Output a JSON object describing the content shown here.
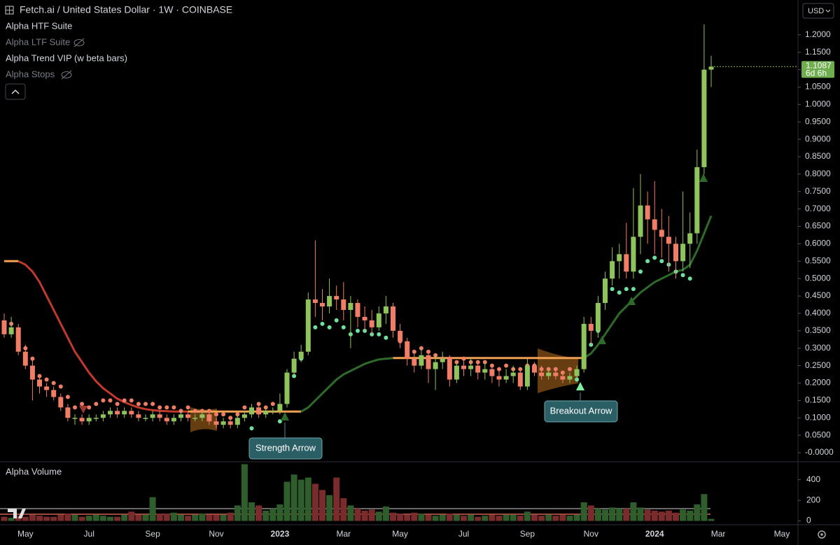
{
  "chart_data": {
    "type": "candlestick",
    "title": "Fetch.ai / United States Dollar · 1W · COINBASE",
    "indicators": [
      "Alpha HTF Suite",
      "Alpha LTF Suite",
      "Alpha Trend VIP (w beta bars)",
      "Alpha Stops"
    ],
    "currency": "USD",
    "countdown": "6d 6h",
    "annotations": [
      "Strength Arrow",
      "Breakout Arrow"
    ],
    "up_color": "#8fc45c",
    "down_color": "#f07d66",
    "categories": [
      null,
      null,
      null,
      "May",
      null,
      null,
      null,
      null,
      null,
      null,
      null,
      null,
      "Jul",
      null,
      null,
      null,
      null,
      null,
      null,
      null,
      null,
      "Sep",
      null,
      null,
      null,
      null,
      null,
      null,
      null,
      null,
      "Nov",
      null,
      null,
      null,
      null,
      null,
      null,
      null,
      null,
      "2023",
      null,
      null,
      null,
      null,
      null,
      null,
      null,
      null,
      "Mar",
      null,
      null,
      null,
      null,
      null,
      null,
      null,
      "May",
      null,
      null,
      null,
      null,
      null,
      null,
      null,
      null,
      "Jul",
      null,
      null,
      null,
      null,
      null,
      null,
      null,
      null,
      "Sep",
      null,
      null,
      null,
      null,
      null,
      null,
      null,
      null,
      "Nov",
      null,
      null,
      null,
      null,
      null,
      null,
      null,
      null,
      "2024",
      null,
      null,
      null,
      null,
      null,
      null,
      null,
      null,
      "Mar",
      null,
      null,
      null,
      null,
      null,
      null,
      null,
      null,
      "May",
      null
    ],
    "open": [
      0.38,
      0.34,
      0.36,
      0.29,
      0.25,
      0.21,
      0.19,
      0.18,
      0.16,
      0.13,
      0.1,
      0.1,
      0.09,
      0.1,
      0.1,
      0.11,
      0.12,
      0.11,
      0.12,
      0.11,
      0.1,
      0.1,
      0.11,
      0.1,
      0.09,
      0.1,
      0.11,
      0.1,
      0.1,
      0.11,
      0.09,
      0.08,
      0.09,
      0.08,
      0.1,
      0.11,
      0.13,
      0.11,
      0.12,
      0.12,
      0.14,
      0.23,
      0.27,
      0.29,
      0.44,
      0.43,
      0.42,
      0.45,
      0.44,
      0.41,
      0.43,
      0.39,
      0.38,
      0.36,
      0.4,
      0.42,
      0.35,
      0.32,
      0.27,
      0.25,
      0.28,
      0.24,
      0.26,
      0.27,
      0.21,
      0.25,
      0.24,
      0.25,
      0.23,
      0.24,
      0.22,
      0.21,
      0.22,
      0.23,
      0.19,
      0.25,
      0.23,
      0.22,
      0.23,
      0.22,
      0.21,
      0.22,
      0.24,
      0.37,
      0.35,
      0.43,
      0.5,
      0.55,
      0.57,
      0.52,
      0.62,
      0.71,
      0.67,
      0.64,
      0.62,
      0.6,
      0.55,
      0.6,
      0.63,
      0.82,
      1.1,
      null,
      null,
      null,
      null,
      null,
      null,
      null,
      null,
      null,
      null,
      null
    ],
    "high": [
      0.4,
      0.39,
      0.37,
      0.31,
      0.27,
      0.22,
      0.2,
      0.19,
      0.17,
      0.14,
      0.11,
      0.11,
      0.11,
      0.11,
      0.12,
      0.13,
      0.13,
      0.13,
      0.13,
      0.12,
      0.11,
      0.12,
      0.12,
      0.11,
      0.11,
      0.12,
      0.12,
      0.11,
      0.12,
      0.12,
      0.1,
      0.1,
      0.1,
      0.11,
      0.12,
      0.14,
      0.14,
      0.13,
      0.13,
      0.17,
      0.24,
      0.29,
      0.31,
      0.46,
      0.61,
      0.47,
      0.5,
      0.48,
      0.49,
      0.45,
      0.44,
      0.42,
      0.41,
      0.42,
      0.45,
      0.43,
      0.37,
      0.33,
      0.29,
      0.3,
      0.29,
      0.28,
      0.29,
      0.28,
      0.26,
      0.27,
      0.27,
      0.26,
      0.26,
      0.25,
      0.24,
      0.24,
      0.25,
      0.24,
      0.27,
      0.26,
      0.25,
      0.24,
      0.24,
      0.23,
      0.23,
      0.25,
      0.39,
      0.39,
      0.45,
      0.52,
      0.59,
      0.6,
      0.66,
      0.76,
      0.8,
      0.75,
      0.78,
      0.7,
      0.68,
      0.62,
      0.75,
      0.69,
      0.87,
      1.23,
      1.14,
      null,
      null,
      null,
      null,
      null,
      null,
      null,
      null,
      null,
      null,
      null
    ],
    "low": [
      0.33,
      0.33,
      0.28,
      0.24,
      0.15,
      0.17,
      0.16,
      0.15,
      0.12,
      0.09,
      0.08,
      0.08,
      0.08,
      0.09,
      0.09,
      0.1,
      0.1,
      0.1,
      0.1,
      0.09,
      0.09,
      0.09,
      0.09,
      0.08,
      0.08,
      0.09,
      0.09,
      0.09,
      0.09,
      0.08,
      0.07,
      0.07,
      0.07,
      0.07,
      0.09,
      0.1,
      0.1,
      0.1,
      0.11,
      0.11,
      0.13,
      0.22,
      0.26,
      0.28,
      0.39,
      0.38,
      0.4,
      0.41,
      0.38,
      0.3,
      0.36,
      0.35,
      0.34,
      0.35,
      0.37,
      0.33,
      0.3,
      0.25,
      0.23,
      0.24,
      0.2,
      0.18,
      0.24,
      0.19,
      0.2,
      0.22,
      0.22,
      0.21,
      0.21,
      0.2,
      0.19,
      0.2,
      0.2,
      0.18,
      0.18,
      0.22,
      0.21,
      0.21,
      0.21,
      0.2,
      0.2,
      0.21,
      0.23,
      0.31,
      0.33,
      0.41,
      0.48,
      0.5,
      0.5,
      0.5,
      0.57,
      0.6,
      0.57,
      0.56,
      0.52,
      0.5,
      0.52,
      0.53,
      0.6,
      0.8,
      1.05,
      null,
      null,
      null,
      null,
      null,
      null,
      null,
      null,
      null,
      null,
      null
    ],
    "close": [
      0.34,
      0.36,
      0.29,
      0.25,
      0.21,
      0.19,
      0.18,
      0.16,
      0.13,
      0.1,
      0.1,
      0.09,
      0.1,
      0.1,
      0.11,
      0.12,
      0.11,
      0.12,
      0.11,
      0.1,
      0.1,
      0.11,
      0.1,
      0.09,
      0.1,
      0.11,
      0.1,
      0.1,
      0.11,
      0.09,
      0.08,
      0.09,
      0.08,
      0.1,
      0.11,
      0.13,
      0.11,
      0.12,
      0.12,
      0.14,
      0.23,
      0.27,
      0.29,
      0.44,
      0.43,
      0.42,
      0.45,
      0.44,
      0.41,
      0.43,
      0.39,
      0.38,
      0.36,
      0.4,
      0.42,
      0.35,
      0.32,
      0.27,
      0.25,
      0.28,
      0.24,
      0.26,
      0.27,
      0.21,
      0.25,
      0.24,
      0.25,
      0.23,
      0.24,
      0.22,
      0.21,
      0.22,
      0.23,
      0.19,
      0.25,
      0.23,
      0.22,
      0.23,
      0.22,
      0.21,
      0.22,
      0.24,
      0.37,
      0.35,
      0.43,
      0.5,
      0.55,
      0.57,
      0.52,
      0.62,
      0.71,
      0.67,
      0.64,
      0.62,
      0.6,
      0.55,
      0.6,
      0.63,
      0.82,
      1.1,
      1.1087,
      null,
      null,
      null,
      null,
      null,
      null,
      null,
      null,
      null,
      null,
      null
    ],
    "trend": [
      {
        "color": "#c0392b",
        "values": [
          null,
          null,
          0.55,
          0.54,
          0.52,
          0.49,
          0.45,
          0.41,
          0.37,
          0.33,
          0.29,
          0.26,
          0.23,
          0.205,
          0.185,
          0.17,
          0.155,
          0.145,
          0.137,
          0.13,
          0.125,
          0.122,
          0.12,
          0.119,
          0.118,
          0.118,
          0.118,
          null,
          null,
          null,
          null,
          null,
          null,
          null,
          null,
          null,
          null,
          null,
          null,
          null,
          null,
          null,
          null,
          null,
          null,
          null,
          null,
          null,
          null,
          null,
          null,
          null,
          null,
          null,
          null,
          null,
          null,
          null,
          null,
          null,
          null,
          null,
          null,
          null,
          null,
          null,
          null,
          null,
          null,
          null,
          null,
          null,
          null,
          null,
          null,
          null,
          null,
          null,
          null,
          null,
          null,
          null,
          null,
          null,
          null,
          null,
          null,
          null,
          null,
          null,
          null,
          null,
          null,
          null,
          null,
          null,
          null,
          null,
          null,
          null,
          null,
          null,
          null,
          null,
          null,
          null,
          null,
          null,
          null,
          null,
          null,
          null
        ]
      },
      {
        "color": "#f0a050",
        "values": [
          0.55,
          0.55,
          0.55,
          null,
          null,
          null,
          null,
          null,
          null,
          null,
          null,
          null,
          null,
          null,
          null,
          null,
          null,
          null,
          null,
          null,
          null,
          null,
          null,
          null,
          null,
          null,
          0.118,
          0.118,
          0.118,
          0.118,
          0.118,
          0.118,
          0.118,
          0.118,
          0.118,
          0.118,
          0.118,
          0.118,
          0.118,
          0.118,
          0.118,
          0.118,
          0.118,
          null,
          null,
          null,
          null,
          null,
          null,
          null,
          null,
          null,
          null,
          null,
          null,
          0.272,
          0.272,
          0.272,
          0.272,
          0.272,
          0.272,
          0.272,
          0.272,
          0.272,
          0.272,
          0.272,
          0.272,
          0.272,
          0.272,
          0.272,
          0.272,
          0.272,
          0.272,
          0.272,
          0.272,
          0.272,
          0.272,
          0.272,
          0.272,
          0.272,
          0.272,
          0.272,
          0.272,
          null,
          null,
          null,
          null,
          null,
          null,
          null,
          null,
          null,
          null,
          null,
          null,
          null,
          null,
          null,
          null,
          null,
          null,
          null,
          null,
          null,
          null,
          null,
          null,
          null,
          null,
          null,
          null,
          null
        ]
      },
      {
        "color": "#2e6b2a",
        "values": [
          null,
          null,
          null,
          null,
          null,
          null,
          null,
          null,
          null,
          null,
          null,
          null,
          null,
          null,
          null,
          null,
          null,
          null,
          null,
          null,
          null,
          null,
          null,
          null,
          null,
          null,
          null,
          null,
          null,
          null,
          null,
          null,
          null,
          null,
          null,
          null,
          null,
          null,
          null,
          null,
          null,
          null,
          0.118,
          0.13,
          0.15,
          0.17,
          0.19,
          0.21,
          0.225,
          0.235,
          0.245,
          0.255,
          0.262,
          0.268,
          0.27,
          0.272,
          null,
          null,
          null,
          null,
          null,
          null,
          null,
          null,
          null,
          null,
          null,
          null,
          null,
          null,
          null,
          null,
          null,
          null,
          null,
          null,
          null,
          null,
          null,
          null,
          null,
          null,
          0.272,
          0.285,
          0.31,
          0.34,
          0.37,
          0.4,
          0.42,
          0.44,
          0.46,
          0.475,
          0.49,
          0.5,
          0.51,
          0.52,
          0.525,
          0.54,
          0.58,
          0.63,
          0.68,
          null,
          null,
          null,
          null,
          null,
          null,
          null,
          null,
          null,
          null,
          null
        ]
      }
    ],
    "stops": [
      {
        "color": "#f07d66",
        "values": [
          null,
          0.37,
          0.33,
          0.3,
          0.27,
          0.22,
          0.21,
          0.2,
          0.19,
          0.16,
          0.13,
          0.14,
          0.13,
          0.14,
          0.15,
          0.15,
          0.14,
          0.15,
          0.15,
          0.14,
          0.14,
          0.14,
          0.13,
          0.13,
          0.13,
          0.12,
          0.13,
          0.12,
          0.12,
          0.12,
          0.11,
          0.11,
          0.1,
          0.11,
          0.13,
          null,
          0.14,
          0.13,
          0.14,
          null,
          null,
          null,
          null,
          null,
          null,
          null,
          null,
          null,
          null,
          null,
          null,
          null,
          null,
          null,
          null,
          0.36,
          0.32,
          0.3,
          0.29,
          0.3,
          0.29,
          0.28,
          0.27,
          0.27,
          0.26,
          0.27,
          0.26,
          0.26,
          0.26,
          0.25,
          0.24,
          0.25,
          0.24,
          0.24,
          0.25,
          0.25,
          0.24,
          0.24,
          0.24,
          0.23,
          0.24,
          null,
          null,
          null,
          null,
          null,
          null,
          null,
          null,
          null,
          null,
          null,
          null,
          null,
          null,
          null,
          null,
          null,
          null,
          null,
          null,
          null,
          null,
          null,
          null,
          null,
          null,
          null,
          null,
          null,
          null,
          null
        ]
      },
      {
        "color": "#6ee0a0",
        "values": [
          null,
          null,
          null,
          null,
          null,
          null,
          null,
          null,
          null,
          null,
          null,
          null,
          null,
          null,
          null,
          null,
          null,
          null,
          null,
          null,
          null,
          null,
          null,
          null,
          null,
          null,
          null,
          null,
          null,
          null,
          null,
          null,
          null,
          null,
          null,
          0.07,
          null,
          null,
          null,
          0.09,
          0.19,
          0.22,
          0.27,
          0.3,
          0.36,
          0.37,
          0.36,
          0.38,
          0.36,
          0.34,
          0.35,
          0.35,
          0.34,
          0.34,
          0.33,
          null,
          null,
          null,
          null,
          null,
          null,
          null,
          null,
          null,
          null,
          null,
          null,
          null,
          null,
          null,
          null,
          null,
          null,
          null,
          null,
          null,
          null,
          null,
          null,
          null,
          null,
          0.21,
          0.3,
          0.31,
          0.35,
          0.44,
          0.47,
          0.46,
          0.47,
          0.47,
          0.52,
          0.55,
          0.56,
          0.55,
          0.54,
          0.52,
          0.51,
          0.5,
          0.81,
          1.04,
          null,
          null,
          null,
          null,
          null,
          null,
          null,
          null,
          null,
          null,
          null,
          null
        ]
      }
    ],
    "ylim": [
      -0.026,
      1.3
    ],
    "yticks": [
      {
        "value": 1.2,
        "label": "1.2000"
      },
      {
        "value": 1.15,
        "label": "1.1500"
      },
      {
        "value": 1.1,
        "label": "1.1000"
      },
      {
        "value": 1.05,
        "label": "1.0500"
      },
      {
        "value": 1.0,
        "label": "1.0000"
      },
      {
        "value": 0.95,
        "label": "0.9500"
      },
      {
        "value": 0.9,
        "label": "0.9000"
      },
      {
        "value": 0.85,
        "label": "0.8500"
      },
      {
        "value": 0.8,
        "label": "0.8000"
      },
      {
        "value": 0.75,
        "label": "0.7500"
      },
      {
        "value": 0.7,
        "label": "0.7000"
      },
      {
        "value": 0.65,
        "label": "0.6500"
      },
      {
        "value": 0.6,
        "label": "0.6000"
      },
      {
        "value": 0.55,
        "label": "0.5500"
      },
      {
        "value": 0.5,
        "label": "0.5000"
      },
      {
        "value": 0.45,
        "label": "0.4500"
      },
      {
        "value": 0.4,
        "label": "0.4000"
      },
      {
        "value": 0.35,
        "label": "0.3500"
      },
      {
        "value": 0.3,
        "label": "0.3000"
      },
      {
        "value": 0.25,
        "label": "0.2500"
      },
      {
        "value": 0.2,
        "label": "0.2000"
      },
      {
        "value": 0.15,
        "label": "0.1500"
      },
      {
        "value": 0.1,
        "label": "0.1000"
      },
      {
        "value": 0.05,
        "label": "0.0500"
      },
      {
        "value": 0,
        "label": "-0.0000"
      }
    ],
    "volume": {
      "title": "Alpha Volume",
      "up_color": "#2f5e2c",
      "down_color": "#7a2b2b",
      "ylim": [
        -30,
        560
      ],
      "yticks": [
        400,
        200,
        0
      ],
      "values": [
        40,
        30,
        50,
        40,
        60,
        50,
        40,
        40,
        60,
        70,
        60,
        40,
        50,
        60,
        50,
        40,
        40,
        60,
        90,
        60,
        60,
        230,
        70,
        70,
        80,
        60,
        50,
        60,
        70,
        60,
        60,
        60,
        80,
        150,
        550,
        180,
        150,
        100,
        120,
        160,
        380,
        450,
        400,
        420,
        360,
        300,
        250,
        420,
        220,
        150,
        120,
        100,
        110,
        90,
        140,
        80,
        70,
        60,
        80,
        70,
        60,
        50,
        60,
        70,
        60,
        50,
        60,
        40,
        50,
        60,
        50,
        60,
        60,
        50,
        90,
        60,
        50,
        60,
        50,
        60,
        50,
        60,
        180,
        150,
        120,
        110,
        130,
        120,
        120,
        180,
        130,
        110,
        100,
        90,
        100,
        80,
        110,
        100,
        160,
        260,
        20,
        null,
        null,
        null,
        null,
        null,
        null,
        null,
        null,
        null,
        null,
        null
      ]
    }
  }
}
